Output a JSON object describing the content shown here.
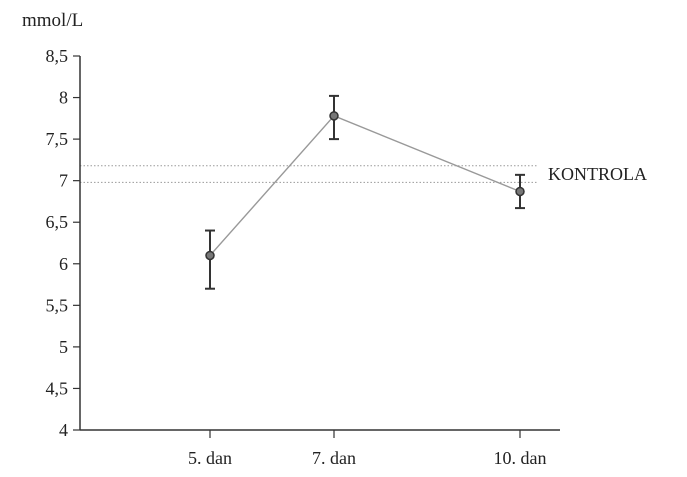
{
  "chart_data": {
    "type": "line",
    "unit_label": "mmol/L",
    "categories": [
      "5. dan",
      "7. dan",
      "10. dan"
    ],
    "values": [
      6.1,
      7.78,
      6.87
    ],
    "error_low": [
      5.7,
      7.5,
      6.67
    ],
    "error_high": [
      6.4,
      8.02,
      7.07
    ],
    "reference": {
      "label": "KONTROLA",
      "band": [
        6.98,
        7.18
      ]
    },
    "ylim": [
      4,
      8.5
    ],
    "yticks": [
      "4",
      "4,5",
      "5",
      "5,5",
      "6",
      "6,5",
      "7",
      "7,5",
      "8",
      "8,5"
    ],
    "grid": false,
    "colors": {
      "axis": "#333333",
      "line": "#999999",
      "marker": "#333333",
      "reference": "#9a9a9a"
    }
  }
}
